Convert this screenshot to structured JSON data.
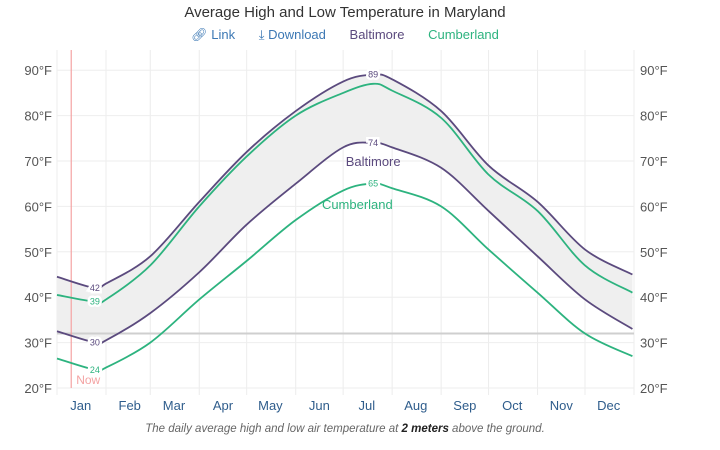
{
  "chart_data": {
    "type": "line",
    "title": "Average High and Low Temperature in Maryland",
    "caption_parts": [
      "The daily average high and low air temperature at ",
      "2 meters",
      " above the ground."
    ],
    "legend_links": {
      "link": "Link",
      "download": "Download"
    },
    "legend_icons": {
      "link": "link-icon",
      "download": "download-icon"
    },
    "legend_placement": "top-center",
    "x_ticks": [
      "Jan",
      "Feb",
      "Mar",
      "Apr",
      "May",
      "Jun",
      "Jul",
      "Aug",
      "Sep",
      "Oct",
      "Nov",
      "Dec"
    ],
    "y_ticks": [
      "20°F",
      "30°F",
      "40°F",
      "50°F",
      "60°F",
      "70°F",
      "80°F",
      "90°F"
    ],
    "ylim": [
      20,
      90
    ],
    "y_unit": "°F",
    "grid": true,
    "freezing_line": 32,
    "now": {
      "label": "Now",
      "date": "Jan 10",
      "color": "#f4a3a3"
    },
    "x": [
      "Jan 1",
      "Jan 25",
      "Feb 1",
      "Mar 1",
      "Apr 1",
      "May 1",
      "Jun 1",
      "Jul 1",
      "Jul 20",
      "Aug 1",
      "Sep 1",
      "Oct 1",
      "Nov 1",
      "Dec 1",
      "Dec 31"
    ],
    "series": [
      {
        "name": "Baltimore",
        "kind": "high",
        "color": "#5b4a7e",
        "values": [
          44.5,
          42,
          43,
          49,
          61,
          72,
          81,
          87.5,
          89,
          88,
          81,
          69,
          61,
          50.5,
          45
        ]
      },
      {
        "name": "Cumberland",
        "kind": "high",
        "color": "#2db37f",
        "values": [
          40.5,
          39,
          39.5,
          47,
          60,
          71,
          80,
          85,
          87,
          85.5,
          79.5,
          67,
          59,
          47,
          41
        ]
      },
      {
        "name": "Baltimore",
        "kind": "low",
        "color": "#5b4a7e",
        "values": [
          32.5,
          30,
          30.5,
          36.5,
          45.5,
          56,
          65,
          73,
          74,
          73,
          68.5,
          59,
          49,
          39.5,
          33
        ]
      },
      {
        "name": "Cumberland",
        "kind": "low",
        "color": "#2db37f",
        "values": [
          26.5,
          24,
          24.5,
          30,
          39.5,
          48,
          57,
          63.5,
          65,
          64,
          60,
          50.5,
          41,
          32,
          27
        ]
      }
    ],
    "point_labels": [
      {
        "series": 0,
        "date": "Jan 25",
        "text": "42"
      },
      {
        "series": 1,
        "date": "Jan 25",
        "text": "39"
      },
      {
        "series": 2,
        "date": "Jan 25",
        "text": "30"
      },
      {
        "series": 3,
        "date": "Jan 25",
        "text": "24"
      },
      {
        "series": 0,
        "date": "Jul 20",
        "text": "89"
      },
      {
        "series": 2,
        "date": "Jul 20",
        "text": "74"
      },
      {
        "series": 3,
        "date": "Jul 20",
        "text": "65"
      }
    ],
    "series_labels": [
      {
        "text": "Baltimore",
        "color": "#5b4a7e",
        "date": "Jul 20",
        "temp": 70
      },
      {
        "text": "Cumberland",
        "color": "#2db37f",
        "date": "Jul 10",
        "temp": 60.5
      }
    ],
    "band_color": "#efefef"
  }
}
